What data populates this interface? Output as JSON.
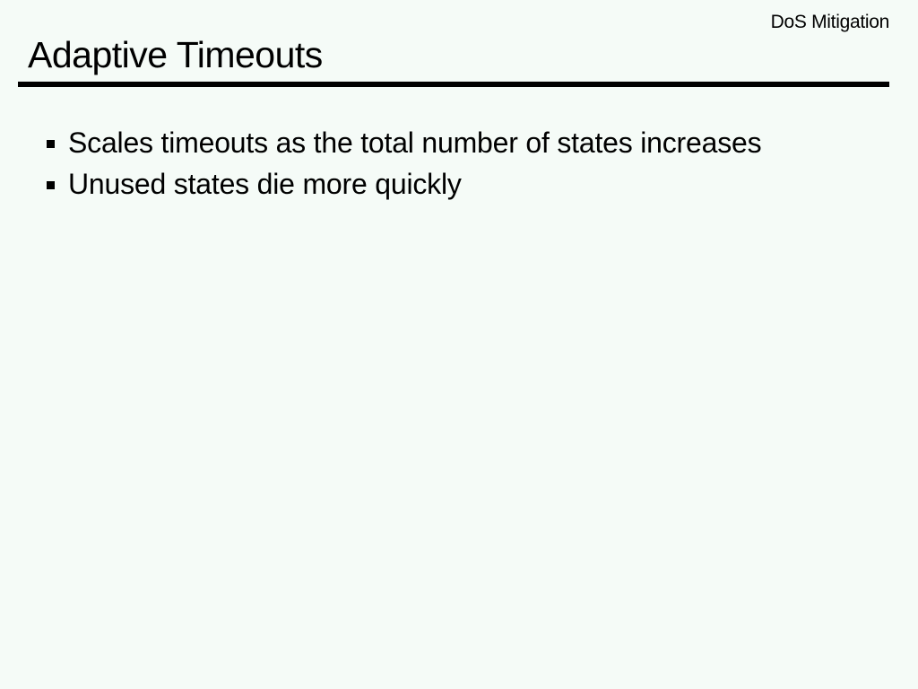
{
  "header": {
    "section": "DoS Mitigation",
    "title": "Adaptive Timeouts"
  },
  "colors": {
    "background": "#f5fbf7",
    "text": "#000000"
  },
  "bullets": [
    {
      "icon": "square-bullet-icon",
      "text": "Scales timeouts as the total number of states increases"
    },
    {
      "icon": "square-bullet-icon",
      "text": "Unused states die more quickly"
    }
  ]
}
